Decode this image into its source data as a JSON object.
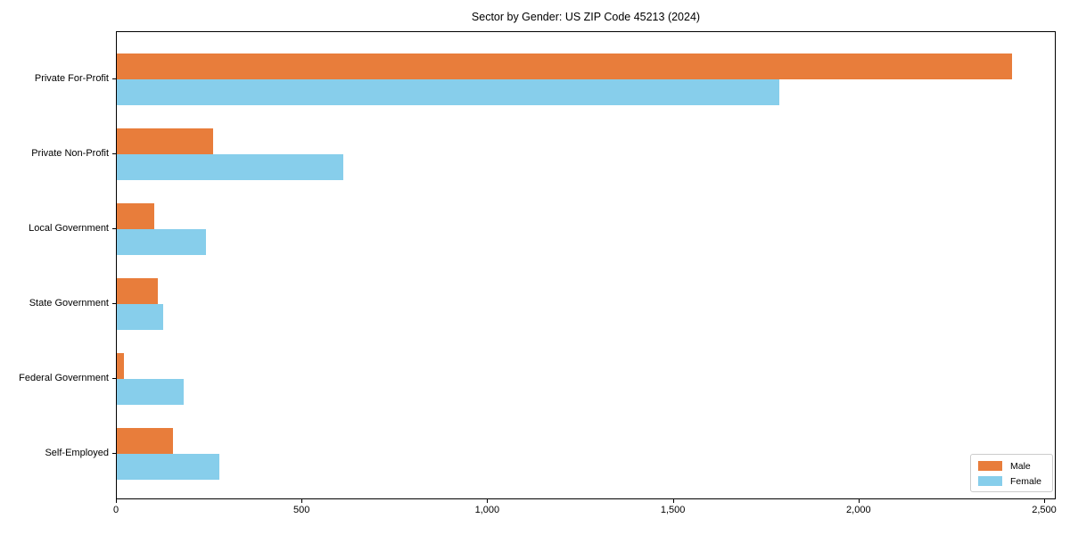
{
  "chart_data": {
    "type": "bar",
    "orientation": "horizontal",
    "title": "Sector by Gender: US ZIP Code 45213 (2024)",
    "categories": [
      "Private For-Profit",
      "Private Non-Profit",
      "Local Government",
      "State Government",
      "Federal Government",
      "Self-Employed"
    ],
    "series": [
      {
        "name": "Male",
        "color": "#e87d3b",
        "values": [
          2410,
          260,
          100,
          110,
          20,
          150
        ]
      },
      {
        "name": "Female",
        "color": "#87ceeb",
        "values": [
          1785,
          610,
          240,
          125,
          180,
          275
        ]
      }
    ],
    "xlabel": "",
    "ylabel": "",
    "xlim": [
      0,
      2500
    ],
    "xticks": [
      0,
      500,
      1000,
      1500,
      2000,
      2500
    ],
    "xtick_labels": [
      "0",
      "500",
      "1,000",
      "1,500",
      "2,000",
      "2,500"
    ],
    "grid": false,
    "legend_position": "lower right",
    "legend_title": ""
  }
}
